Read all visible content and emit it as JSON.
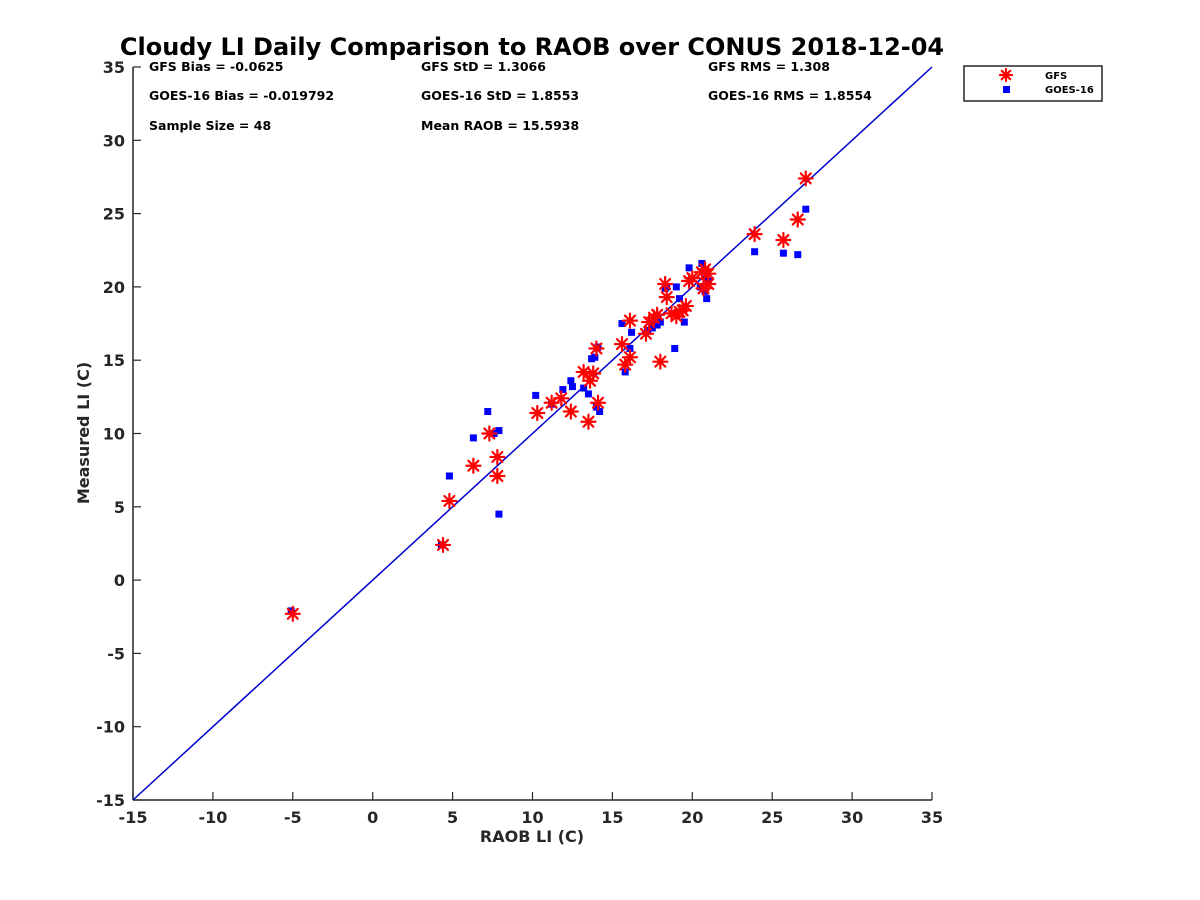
{
  "chart_data": {
    "type": "scatter",
    "title": "Cloudy LI Daily Comparison to RAOB over CONUS 2018-12-04",
    "xlabel": "RAOB LI (C)",
    "ylabel": "Measured LI (C)",
    "xlim": [
      -15,
      35
    ],
    "ylim": [
      -15,
      35
    ],
    "xticks": [
      "-15",
      "-10",
      "-5",
      "0",
      "5",
      "10",
      "15",
      "20",
      "25",
      "30",
      "35"
    ],
    "yticks": [
      "-15",
      "-10",
      "-5",
      "0",
      "5",
      "10",
      "15",
      "20",
      "25",
      "30",
      "35"
    ],
    "grid": false,
    "legend_position": "top-right outside",
    "reference_line": {
      "type": "one-to-one",
      "color": "#0000cc"
    },
    "stats": [
      [
        "GFS Bias = -0.0625",
        "GFS StD = 1.3066",
        "GFS RMS = 1.308"
      ],
      [
        "GOES-16 Bias = -0.019792",
        "GOES-16 StD = 1.8553",
        "GOES-16 RMS = 1.8554"
      ],
      [
        "Sample Size = 48",
        "Mean RAOB = 15.5938",
        ""
      ]
    ],
    "series": [
      {
        "name": "GFS",
        "marker": "asterisk",
        "color": "#ff0000",
        "points": [
          [
            -5.0,
            -2.3
          ],
          [
            4.4,
            2.4
          ],
          [
            4.8,
            5.4
          ],
          [
            6.3,
            7.8
          ],
          [
            7.3,
            10.0
          ],
          [
            7.8,
            8.4
          ],
          [
            7.8,
            7.1
          ],
          [
            10.3,
            11.4
          ],
          [
            11.2,
            12.1
          ],
          [
            11.8,
            12.4
          ],
          [
            12.4,
            11.5
          ],
          [
            13.2,
            14.2
          ],
          [
            13.5,
            10.8
          ],
          [
            13.6,
            13.6
          ],
          [
            13.8,
            14.1
          ],
          [
            14.0,
            15.8
          ],
          [
            14.1,
            12.1
          ],
          [
            15.6,
            16.1
          ],
          [
            15.8,
            14.7
          ],
          [
            16.1,
            15.2
          ],
          [
            16.1,
            17.7
          ],
          [
            17.1,
            16.8
          ],
          [
            17.3,
            17.6
          ],
          [
            17.6,
            17.9
          ],
          [
            17.8,
            18.1
          ],
          [
            18.0,
            14.9
          ],
          [
            18.3,
            20.2
          ],
          [
            18.4,
            19.3
          ],
          [
            18.7,
            18.2
          ],
          [
            19.0,
            18.0
          ],
          [
            19.2,
            18.3
          ],
          [
            19.4,
            18.4
          ],
          [
            19.6,
            18.7
          ],
          [
            19.8,
            20.4
          ],
          [
            20.0,
            20.6
          ],
          [
            20.6,
            21.0
          ],
          [
            20.8,
            21.2
          ],
          [
            21.0,
            20.2
          ],
          [
            20.7,
            19.9
          ],
          [
            21.0,
            20.9
          ],
          [
            23.9,
            23.6
          ],
          [
            25.7,
            23.2
          ],
          [
            26.6,
            24.6
          ],
          [
            27.1,
            27.4
          ]
        ]
      },
      {
        "name": "GOES-16",
        "marker": "square",
        "color": "#0000ff",
        "points": [
          [
            -5.1,
            -2.1
          ],
          [
            4.3,
            2.4
          ],
          [
            4.8,
            7.1
          ],
          [
            6.3,
            9.7
          ],
          [
            7.2,
            11.5
          ],
          [
            7.6,
            10.0
          ],
          [
            7.9,
            10.2
          ],
          [
            7.9,
            4.5
          ],
          [
            10.2,
            12.6
          ],
          [
            11.2,
            12.0
          ],
          [
            11.9,
            13.0
          ],
          [
            12.4,
            13.6
          ],
          [
            12.5,
            13.2
          ],
          [
            13.2,
            13.1
          ],
          [
            13.5,
            12.7
          ],
          [
            13.7,
            15.1
          ],
          [
            13.9,
            15.2
          ],
          [
            14.1,
            15.9
          ],
          [
            14.0,
            11.8
          ],
          [
            14.2,
            11.5
          ],
          [
            15.6,
            17.5
          ],
          [
            15.8,
            14.2
          ],
          [
            16.1,
            15.8
          ],
          [
            16.2,
            16.9
          ],
          [
            17.2,
            17.0
          ],
          [
            17.5,
            17.2
          ],
          [
            17.8,
            17.4
          ],
          [
            18.0,
            17.6
          ],
          [
            18.3,
            19.9
          ],
          [
            18.4,
            20.0
          ],
          [
            18.9,
            15.8
          ],
          [
            19.0,
            20.0
          ],
          [
            19.2,
            19.2
          ],
          [
            19.5,
            17.6
          ],
          [
            19.8,
            21.3
          ],
          [
            20.5,
            20.0
          ],
          [
            20.6,
            21.6
          ],
          [
            20.8,
            19.7
          ],
          [
            20.9,
            19.2
          ],
          [
            21.0,
            20.4
          ],
          [
            23.9,
            22.4
          ],
          [
            25.7,
            22.3
          ],
          [
            26.6,
            22.2
          ],
          [
            27.1,
            25.3
          ]
        ]
      }
    ]
  }
}
